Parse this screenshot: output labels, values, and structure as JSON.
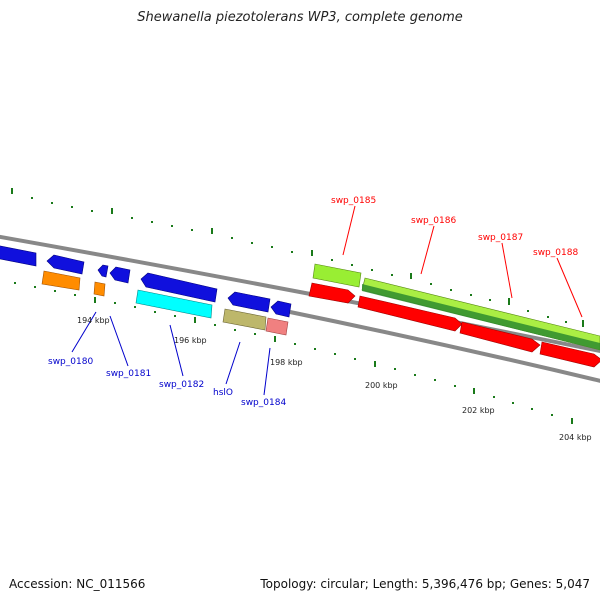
{
  "title": "Shewanella piezotolerans WP3, complete genome",
  "accession": "Accession: NC_011566",
  "summary": "Topology: circular; Length: 5,396,476 bp; Genes: 5,047",
  "ticks": [
    "194 kbp",
    "196 kbp",
    "198 kbp",
    "200 kbp",
    "202 kbp",
    "204 kbp"
  ],
  "genes_forward": [
    "swp_0185",
    "swp_0186",
    "swp_0187",
    "swp_0188"
  ],
  "genes_reverse": [
    "swp_0180",
    "swp_0181",
    "swp_0182",
    "hslO",
    "swp_0184"
  ],
  "colors": {
    "forward_label": "#ff0000",
    "reverse_label": "#0000cc",
    "backbone": "#888888",
    "tick": "#006400"
  }
}
